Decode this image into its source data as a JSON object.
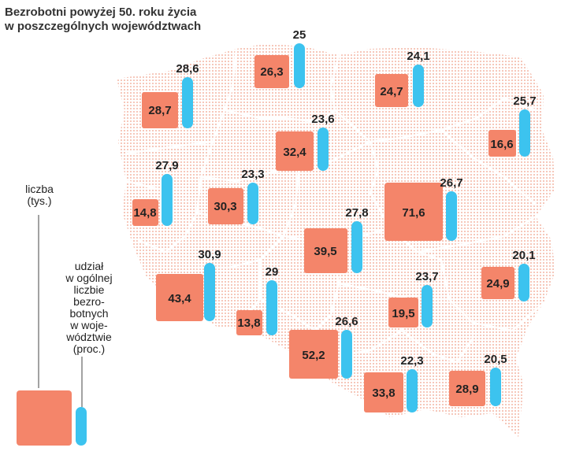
{
  "title": {
    "line1": "Bezrobotni powyżej 50. roku życia",
    "line2": "w poszczególnych województwach"
  },
  "legend": {
    "count_label": [
      "liczba",
      "(tys.)"
    ],
    "share_label": [
      "udział",
      "w ogólnej",
      "liczbie",
      "bezro-",
      "botnych",
      "w woje-",
      "wództwie",
      "(proc.)"
    ]
  },
  "colors": {
    "count": "#f4856a",
    "share": "#3cc3ef",
    "map": "#f3b8a8",
    "text": "#222222"
  },
  "chart_data": {
    "type": "map",
    "title": "Bezrobotni powyżej 50. roku życia w poszczególnych województwach",
    "measures": [
      "liczba (tys.)",
      "udział w ogólnej liczbie bezrobotnych w województwie (proc.)"
    ],
    "regions": [
      {
        "count": "26,3",
        "count_value": 26.3,
        "share": "25",
        "share_value": 25.0
      },
      {
        "count": "24,7",
        "count_value": 24.7,
        "share": "24,1",
        "share_value": 24.1
      },
      {
        "count": "28,7",
        "count_value": 28.7,
        "share": "28,6",
        "share_value": 28.6
      },
      {
        "count": "32,4",
        "count_value": 32.4,
        "share": "23,6",
        "share_value": 23.6
      },
      {
        "count": "16,6",
        "count_value": 16.6,
        "share": "25,7",
        "share_value": 25.7
      },
      {
        "count": "14,8",
        "count_value": 14.8,
        "share": "27,9",
        "share_value": 27.9
      },
      {
        "count": "30,3",
        "count_value": 30.3,
        "share": "23,3",
        "share_value": 23.3
      },
      {
        "count": "71,6",
        "count_value": 71.6,
        "share": "26,7",
        "share_value": 26.7
      },
      {
        "count": "39,5",
        "count_value": 39.5,
        "share": "27,8",
        "share_value": 27.8
      },
      {
        "count": "43,4",
        "count_value": 43.4,
        "share": "30,9",
        "share_value": 30.9
      },
      {
        "count": "24,9",
        "count_value": 24.9,
        "share": "20,1",
        "share_value": 20.1
      },
      {
        "count": "13,8",
        "count_value": 13.8,
        "share": "29",
        "share_value": 29.0
      },
      {
        "count": "19,5",
        "count_value": 19.5,
        "share": "23,7",
        "share_value": 23.7
      },
      {
        "count": "52,2",
        "count_value": 52.2,
        "share": "26,6",
        "share_value": 26.6
      },
      {
        "count": "33,8",
        "count_value": 33.8,
        "share": "22,3",
        "share_value": 22.3
      },
      {
        "count": "28,9",
        "count_value": 28.9,
        "share": "20,5",
        "share_value": 20.5
      }
    ]
  }
}
